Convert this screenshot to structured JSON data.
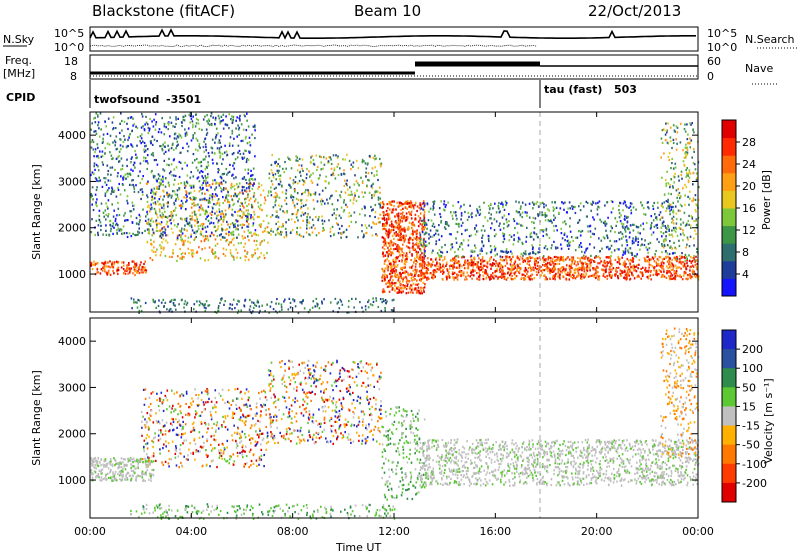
{
  "header": {
    "site": "Blackstone (fitACF)",
    "beam": "Beam 10",
    "date": "22/Oct/2013"
  },
  "noise_panel": {
    "left_label": "N.Sky",
    "right_label": "N.Search",
    "left_ticks": [
      "10^5",
      "10^0"
    ],
    "right_ticks": [
      "10^5",
      "10^0"
    ]
  },
  "freq_panel": {
    "left_label_line1": "Freq.",
    "left_label_line2": "[MHz]",
    "right_label": "Nave",
    "left_ticks": [
      "18",
      "8"
    ],
    "right_ticks": [
      "60",
      "0"
    ]
  },
  "cpid_panel": {
    "label": "CPID",
    "programs": [
      {
        "name": "twofsound",
        "id": "-3501",
        "start_hour": 0
      },
      {
        "name": "tau (fast)",
        "id": "503",
        "start_hour": 18
      }
    ]
  },
  "time_axis": {
    "label": "Time UT",
    "ticks": [
      "00:00",
      "04:00",
      "08:00",
      "12:00",
      "16:00",
      "20:00",
      "00:00"
    ],
    "tick_hours": [
      0,
      4,
      8,
      12,
      16,
      20,
      24
    ]
  },
  "chart_data": [
    {
      "type": "heatmap",
      "name": "power",
      "ylabel": "Slant Range [km]",
      "yticks": [
        1000,
        2000,
        3000,
        4000
      ],
      "ylim": [
        180,
        4500
      ],
      "xlim_hours": [
        0,
        24
      ],
      "colorbar": {
        "label": "Power [dB]",
        "ticks": [
          "4",
          "8",
          "12",
          "16",
          "20",
          "24",
          "28"
        ],
        "colors": [
          "#1414ff",
          "#1e3c9a",
          "#2e6e6e",
          "#3c9646",
          "#7cc83a",
          "#e8c81e",
          "#ffa014",
          "#ff6a0a",
          "#ff2a00",
          "#e00000"
        ]
      },
      "scatter_bands": [
        {
          "hours": [
            0.0,
            2.2
          ],
          "range_km": [
            1000,
            1300
          ],
          "level": "high"
        },
        {
          "hours": [
            2.2,
            7.0
          ],
          "range_km": [
            1300,
            3000
          ],
          "level": "mid-high"
        },
        {
          "hours": [
            0.0,
            6.5
          ],
          "range_km": [
            1800,
            4500
          ],
          "level": "low-mid"
        },
        {
          "hours": [
            7.0,
            11.5
          ],
          "range_km": [
            1800,
            3600
          ],
          "level": "mixed"
        },
        {
          "hours": [
            11.5,
            13.2
          ],
          "range_km": [
            600,
            2600
          ],
          "level": "high"
        },
        {
          "hours": [
            13.0,
            24.0
          ],
          "range_km": [
            900,
            1400
          ],
          "level": "high"
        },
        {
          "hours": [
            13.0,
            23.0
          ],
          "range_km": [
            1400,
            2600
          ],
          "level": "low-mid"
        },
        {
          "hours": [
            22.5,
            24.0
          ],
          "range_km": [
            1300,
            4300
          ],
          "level": "mixed"
        },
        {
          "hours": [
            1.5,
            12.0
          ],
          "range_km": [
            180,
            500
          ],
          "level": "low"
        }
      ]
    },
    {
      "type": "heatmap",
      "name": "velocity",
      "ylabel": "Slant Range [km]",
      "yticks": [
        1000,
        2000,
        3000,
        4000
      ],
      "ylim": [
        180,
        4500
      ],
      "xlim_hours": [
        0,
        24
      ],
      "colorbar": {
        "label": "Velocity [m s⁻¹]",
        "ticks": [
          "200",
          "100",
          "50",
          "15",
          "-15",
          "-50",
          "-100",
          "-200"
        ],
        "colors": [
          "#1e28c8",
          "#2a50a0",
          "#2e8c4c",
          "#5cc834",
          "#c0c0c0",
          "#ffb000",
          "#ff7800",
          "#ff3c00",
          "#e00000"
        ]
      },
      "scatter_bands": [
        {
          "hours": [
            0.0,
            2.5
          ],
          "range_km": [
            1000,
            1500
          ],
          "level": "grey"
        },
        {
          "hours": [
            2.0,
            7.0
          ],
          "range_km": [
            1300,
            3000
          ],
          "level": "mixed"
        },
        {
          "hours": [
            7.0,
            11.5
          ],
          "range_km": [
            1800,
            3600
          ],
          "level": "mixed"
        },
        {
          "hours": [
            11.5,
            13.2
          ],
          "range_km": [
            600,
            2600
          ],
          "level": "green"
        },
        {
          "hours": [
            13.0,
            24.0
          ],
          "range_km": [
            900,
            1900
          ],
          "level": "grey"
        },
        {
          "hours": [
            22.5,
            24.0
          ],
          "range_km": [
            1500,
            4300
          ],
          "level": "orange"
        },
        {
          "hours": [
            1.5,
            12.0
          ],
          "range_km": [
            180,
            500
          ],
          "level": "green"
        }
      ]
    }
  ]
}
